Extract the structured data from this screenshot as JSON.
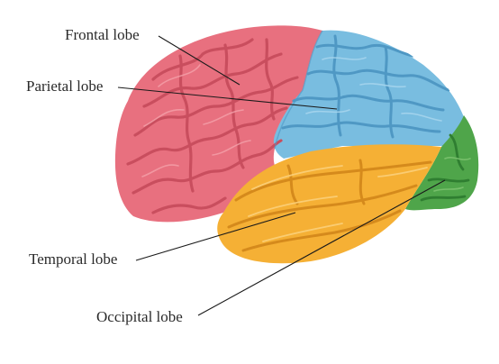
{
  "labels": {
    "frontal": "Frontal lobe",
    "parietal": "Parietal lobe",
    "temporal": "Temporal lobe",
    "occipital": "Occipital lobe"
  },
  "colors": {
    "frontal": "#e8707f",
    "frontal_groove": "#c94e5e",
    "frontal_light": "#f4a2ab",
    "parietal": "#79bde0",
    "parietal_groove": "#4f98c4",
    "parietal_light": "#a9d6ee",
    "temporal": "#f5b035",
    "temporal_groove": "#d58a1c",
    "temporal_light": "#fbd07a",
    "occipital": "#4fa54a",
    "occipital_groove": "#2f7e31",
    "occipital_light": "#7cc26f",
    "leader_line": "#1a1a1a",
    "label_text": "#2a2a2a"
  }
}
